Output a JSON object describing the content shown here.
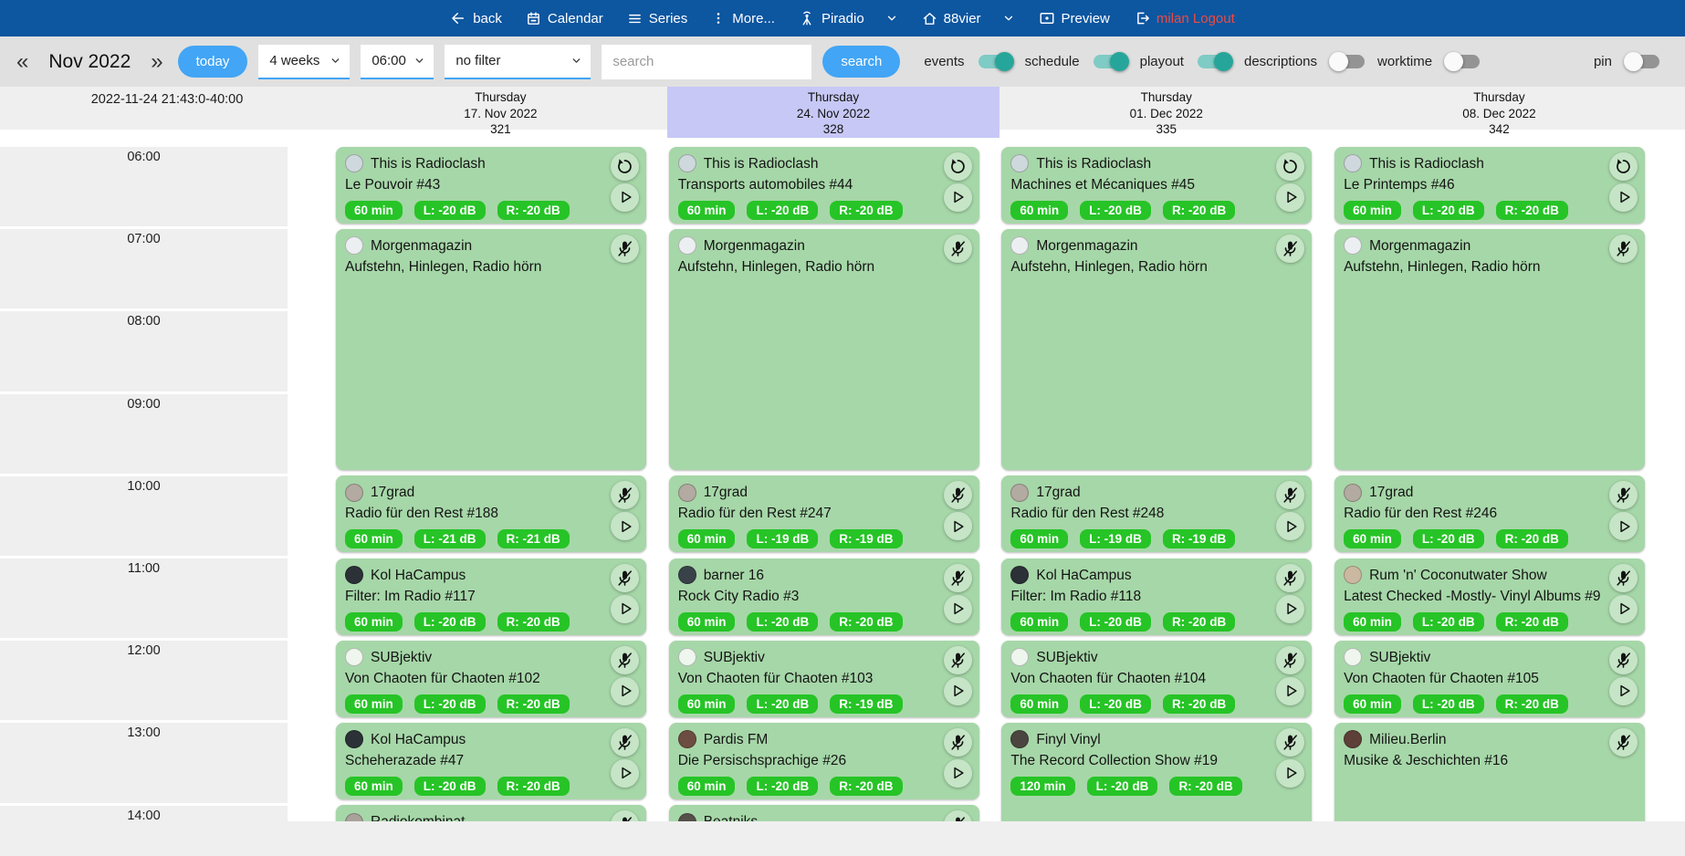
{
  "topbar": {
    "items": [
      {
        "label": "back",
        "icon": "arrow-left-icon"
      },
      {
        "label": "Calendar",
        "icon": "calendar-icon"
      },
      {
        "label": "Series",
        "icon": "list-icon"
      },
      {
        "label": "More...",
        "icon": "kebab-menu-icon"
      },
      {
        "label": "Piradio",
        "icon": "antenna-icon",
        "caret": true
      },
      {
        "label": "88vier",
        "icon": "home-icon",
        "caret": true
      },
      {
        "label": "Preview",
        "icon": "preview-icon"
      }
    ],
    "user": "milan",
    "logout_label": "milan Logout"
  },
  "toolbar": {
    "prev": "«",
    "next": "»",
    "month": "Nov 2022",
    "today_label": "today",
    "range_value": "4 weeks",
    "time_value": "06:00",
    "filter_value": "no filter",
    "search_placeholder": "search",
    "search_label": "search",
    "toggles": [
      {
        "label": "events",
        "on": true
      },
      {
        "label": "schedule",
        "on": true
      },
      {
        "label": "playout",
        "on": true
      },
      {
        "label": "descriptions",
        "on": false
      },
      {
        "label": "worktime",
        "on": false
      }
    ],
    "pin": {
      "label": "pin",
      "on": false
    }
  },
  "colors": {
    "topbar_blue": "#0d56a0",
    "accent_blue": "#42a5f5",
    "toggle_on": "#26a69a",
    "logout_red": "#ea4b42",
    "selected_day": "#c7c8f6",
    "event_green": "#a6d7a8",
    "badge_green": "#26c426"
  },
  "calendar": {
    "timestamp": "2022-11-24 21:43:0-40:00",
    "hours": [
      "06:00",
      "07:00",
      "08:00",
      "09:00",
      "10:00",
      "11:00",
      "12:00",
      "13:00",
      "14:00"
    ],
    "days": [
      {
        "weekday": "Thursday",
        "date": "17. Nov 2022",
        "num": "321",
        "selected": false,
        "events": [
          {
            "show": "This is Radioclash",
            "title": "Le Pouvoir #43",
            "badges": [
              "60 min",
              "L: -20 dB",
              "R: -20 dB"
            ],
            "actions": [
              "replay",
              "play"
            ],
            "start": 6,
            "dur": 1,
            "avatar_color": "#cfd8dc"
          },
          {
            "show": "Morgenmagazin",
            "title": "Aufstehn, Hinlegen, Radio hörn",
            "badges": [],
            "actions": [
              "micoff"
            ],
            "start": 7,
            "dur": 3,
            "avatar_color": "#eceff1"
          },
          {
            "show": "17grad",
            "title": "Radio für den Rest #188",
            "badges": [
              "60 min",
              "L: -21 dB",
              "R: -21 dB"
            ],
            "actions": [
              "micoff",
              "play"
            ],
            "start": 10,
            "dur": 1,
            "avatar_color": "#b3aaa1"
          },
          {
            "show": "Kol HaCampus",
            "title": "Filter: Im Radio #117",
            "badges": [
              "60 min",
              "L: -20 dB",
              "R: -20 dB"
            ],
            "actions": [
              "micoff",
              "play"
            ],
            "start": 11,
            "dur": 1,
            "avatar_color": "#2b3136"
          },
          {
            "show": "SUBjektiv",
            "title": "Von Chaoten für Chaoten #102",
            "badges": [
              "60 min",
              "L: -20 dB",
              "R: -20 dB"
            ],
            "actions": [
              "micoff",
              "play"
            ],
            "start": 12,
            "dur": 1,
            "avatar_color": "#eef6ee"
          },
          {
            "show": "Kol HaCampus",
            "title": "Scheherazade #47",
            "badges": [
              "60 min",
              "L: -20 dB",
              "R: -20 dB"
            ],
            "actions": [
              "micoff",
              "play"
            ],
            "start": 13,
            "dur": 1,
            "avatar_color": "#2b3136"
          },
          {
            "show": "Radiokombinat",
            "title": "",
            "badges": [],
            "actions": [
              "micoff"
            ],
            "start": 14,
            "dur": 1,
            "avatar_color": "#a9a29a"
          }
        ]
      },
      {
        "weekday": "Thursday",
        "date": "24. Nov 2022",
        "num": "328",
        "selected": true,
        "events": [
          {
            "show": "This is Radioclash",
            "title": "Transports automobiles #44",
            "badges": [
              "60 min",
              "L: -20 dB",
              "R: -20 dB"
            ],
            "actions": [
              "replay",
              "play"
            ],
            "start": 6,
            "dur": 1,
            "avatar_color": "#cfd8dc"
          },
          {
            "show": "Morgenmagazin",
            "title": "Aufstehn, Hinlegen, Radio hörn",
            "badges": [],
            "actions": [
              "micoff"
            ],
            "start": 7,
            "dur": 3,
            "avatar_color": "#eceff1"
          },
          {
            "show": "17grad",
            "title": "Radio für den Rest #247",
            "badges": [
              "60 min",
              "L: -19 dB",
              "R: -19 dB"
            ],
            "actions": [
              "micoff",
              "play"
            ],
            "start": 10,
            "dur": 1,
            "avatar_color": "#b3aaa1"
          },
          {
            "show": "barner 16",
            "title": "Rock City Radio #3",
            "badges": [
              "60 min",
              "L: -20 dB",
              "R: -20 dB"
            ],
            "actions": [
              "micoff",
              "play"
            ],
            "start": 11,
            "dur": 1,
            "avatar_color": "#3a4249"
          },
          {
            "show": "SUBjektiv",
            "title": "Von Chaoten für Chaoten #103",
            "badges": [
              "60 min",
              "L: -20 dB",
              "R: -19 dB"
            ],
            "actions": [
              "micoff",
              "play"
            ],
            "start": 12,
            "dur": 1,
            "avatar_color": "#eef6ee"
          },
          {
            "show": "Pardis FM",
            "title": "Die Persischsprachige #26",
            "badges": [
              "60 min",
              "L: -20 dB",
              "R: -20 dB"
            ],
            "actions": [
              "micoff",
              "play"
            ],
            "start": 13,
            "dur": 1,
            "avatar_color": "#6d4c41"
          },
          {
            "show": "Beatniks",
            "title": "",
            "badges": [],
            "actions": [
              "micoff"
            ],
            "start": 14,
            "dur": 1,
            "avatar_color": "#55504a"
          }
        ]
      },
      {
        "weekday": "Thursday",
        "date": "01. Dec 2022",
        "num": "335",
        "selected": false,
        "events": [
          {
            "show": "This is Radioclash",
            "title": "Machines et Mécaniques #45",
            "badges": [
              "60 min",
              "L: -20 dB",
              "R: -20 dB"
            ],
            "actions": [
              "replay",
              "play"
            ],
            "start": 6,
            "dur": 1,
            "avatar_color": "#cfd8dc"
          },
          {
            "show": "Morgenmagazin",
            "title": "Aufstehn, Hinlegen, Radio hörn",
            "badges": [],
            "actions": [
              "micoff"
            ],
            "start": 7,
            "dur": 3,
            "avatar_color": "#eceff1"
          },
          {
            "show": "17grad",
            "title": "Radio für den Rest #248",
            "badges": [
              "60 min",
              "L: -19 dB",
              "R: -19 dB"
            ],
            "actions": [
              "micoff",
              "play"
            ],
            "start": 10,
            "dur": 1,
            "avatar_color": "#b3aaa1"
          },
          {
            "show": "Kol HaCampus",
            "title": "Filter: Im Radio #118",
            "badges": [
              "60 min",
              "L: -20 dB",
              "R: -20 dB"
            ],
            "actions": [
              "micoff",
              "play"
            ],
            "start": 11,
            "dur": 1,
            "avatar_color": "#2b3136"
          },
          {
            "show": "SUBjektiv",
            "title": "Von Chaoten für Chaoten #104",
            "badges": [
              "60 min",
              "L: -20 dB",
              "R: -20 dB"
            ],
            "actions": [
              "micoff",
              "play"
            ],
            "start": 12,
            "dur": 1,
            "avatar_color": "#eef6ee"
          },
          {
            "show": "Finyl Vinyl",
            "title": "The Record Collection Show #19",
            "badges": [
              "120 min",
              "L: -20 dB",
              "R: -20 dB"
            ],
            "actions": [
              "micoff",
              "play"
            ],
            "start": 13,
            "dur": 2,
            "avatar_color": "#4a463f"
          }
        ]
      },
      {
        "weekday": "Thursday",
        "date": "08. Dec 2022",
        "num": "342",
        "selected": false,
        "events": [
          {
            "show": "This is Radioclash",
            "title": "Le Printemps #46",
            "badges": [
              "60 min",
              "L: -20 dB",
              "R: -20 dB"
            ],
            "actions": [
              "replay",
              "play"
            ],
            "start": 6,
            "dur": 1,
            "avatar_color": "#cfd8dc"
          },
          {
            "show": "Morgenmagazin",
            "title": "Aufstehn, Hinlegen, Radio hörn",
            "badges": [],
            "actions": [
              "micoff"
            ],
            "start": 7,
            "dur": 3,
            "avatar_color": "#eceff1"
          },
          {
            "show": "17grad",
            "title": "Radio für den Rest #246",
            "badges": [
              "60 min",
              "L: -20 dB",
              "R: -20 dB"
            ],
            "actions": [
              "micoff",
              "play"
            ],
            "start": 10,
            "dur": 1,
            "avatar_color": "#b3aaa1"
          },
          {
            "show": "Rum 'n' Coconutwater Show",
            "title": "Latest Checked -Mostly- Vinyl Albums #9",
            "badges": [
              "60 min",
              "L: -20 dB",
              "R: -20 dB"
            ],
            "actions": [
              "micoff",
              "play"
            ],
            "start": 11,
            "dur": 1,
            "avatar_color": "#cbb8a0"
          },
          {
            "show": "SUBjektiv",
            "title": "Von Chaoten für Chaoten #105",
            "badges": [
              "60 min",
              "L: -20 dB",
              "R: -20 dB"
            ],
            "actions": [
              "micoff",
              "play"
            ],
            "start": 12,
            "dur": 1,
            "avatar_color": "#eef6ee"
          },
          {
            "show": "Milieu.Berlin",
            "title": "Musike & Jeschichten #16",
            "badges": [],
            "actions": [
              "micoff"
            ],
            "start": 13,
            "dur": 2,
            "avatar_color": "#5d4037"
          }
        ]
      }
    ]
  }
}
